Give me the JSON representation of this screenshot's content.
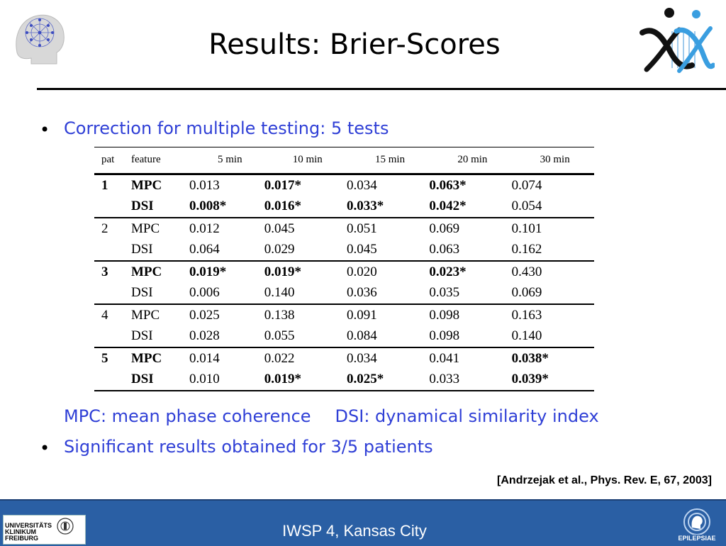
{
  "slide": {
    "title": "Results: Brier-Scores",
    "bullets": [
      "Correction for multiple testing: 5 tests",
      "Significant results obtained for 3/5 patients"
    ],
    "legend": {
      "mpc": "MPC: mean phase coherence",
      "dsi": "DSI: dynamical similarity index"
    },
    "citation": "[Andrzejak et al., Phys. Rev. E,  67, 2003]"
  },
  "table": {
    "headers": [
      "pat",
      "feature",
      "5 min",
      "10 min",
      "15 min",
      "20 min",
      "30 min"
    ],
    "rows": [
      {
        "pat": "1",
        "feature": "MPC",
        "values": [
          "0.013",
          "0.017*",
          "0.034",
          "0.063*",
          "0.074"
        ]
      },
      {
        "pat": "",
        "feature": "DSI",
        "values": [
          "0.008*",
          "0.016*",
          "0.033*",
          "0.042*",
          "0.054"
        ]
      },
      {
        "pat": "2",
        "feature": "MPC",
        "values": [
          "0.012",
          "0.045",
          "0.051",
          "0.069",
          "0.101"
        ]
      },
      {
        "pat": "",
        "feature": "DSI",
        "values": [
          "0.064",
          "0.029",
          "0.045",
          "0.063",
          "0.162"
        ]
      },
      {
        "pat": "3",
        "feature": "MPC",
        "values": [
          "0.019*",
          "0.019*",
          "0.020",
          "0.023*",
          "0.430"
        ]
      },
      {
        "pat": "",
        "feature": "DSI",
        "values": [
          "0.006",
          "0.140",
          "0.036",
          "0.035",
          "0.069"
        ]
      },
      {
        "pat": "4",
        "feature": "MPC",
        "values": [
          "0.025",
          "0.138",
          "0.091",
          "0.098",
          "0.163"
        ]
      },
      {
        "pat": "",
        "feature": "DSI",
        "values": [
          "0.028",
          "0.055",
          "0.084",
          "0.098",
          "0.140"
        ]
      },
      {
        "pat": "5",
        "feature": "MPC",
        "values": [
          "0.014",
          "0.022",
          "0.034",
          "0.041",
          "0.038*"
        ]
      },
      {
        "pat": "",
        "feature": "DSI",
        "values": [
          "0.010",
          "0.019*",
          "0.025*",
          "0.033",
          "0.039*"
        ]
      }
    ]
  },
  "footer": {
    "text": "IWSP 4, Kansas City",
    "uni_logo": "UNIVERSITÄTS KLINIKUM FREIBURG",
    "epi_logo": "EPILEPSIAE"
  },
  "colors": {
    "accent_text": "#2f3fd6",
    "footer_bg": "#2a5fa4"
  },
  "icons": [
    "brain-network-logo",
    "xx-logo",
    "university-seal-icon",
    "epilepsiae-logo"
  ]
}
